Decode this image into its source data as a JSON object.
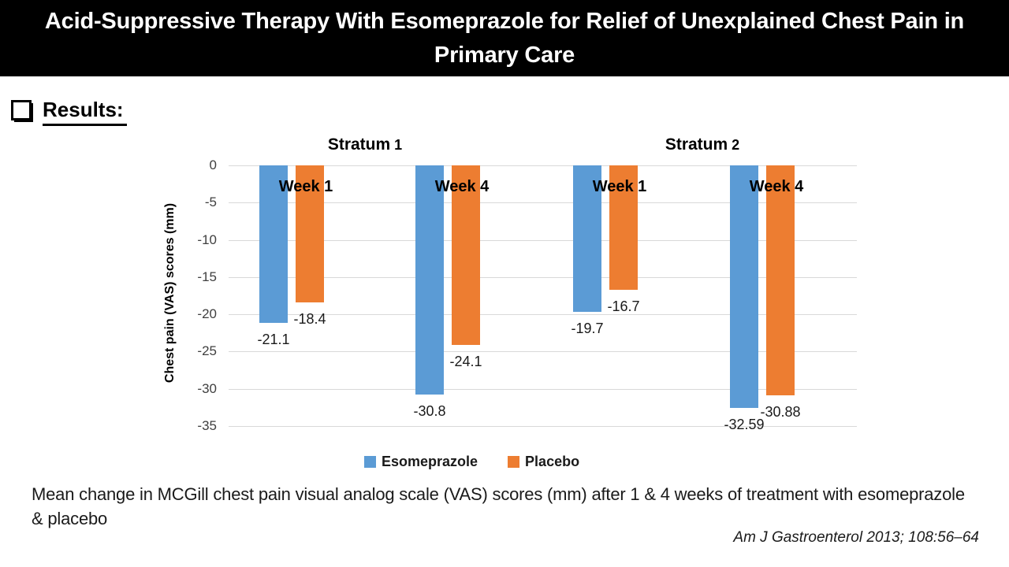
{
  "title_bar": {
    "title": "Acid-Suppressive Therapy With Esomeprazole for Relief of Unexplained Chest Pain in Primary Care"
  },
  "results_heading": {
    "label": "Results:"
  },
  "chart_data": {
    "type": "bar",
    "ylabel": "Chest pain (VAS) scores (mm)",
    "ylim": [
      -35,
      0
    ],
    "yticks": [
      0,
      -5,
      -10,
      -15,
      -20,
      -25,
      -30,
      -35
    ],
    "grid": true,
    "grid_color": "#D9D9D9",
    "legend_position": "bottom",
    "strata": [
      {
        "label": "Stratum",
        "number": "1"
      },
      {
        "label": "Stratum",
        "number": "2"
      }
    ],
    "groups": [
      {
        "stratum": "Stratum 1",
        "category": "Week 1"
      },
      {
        "stratum": "Stratum 1",
        "category": "Week 4"
      },
      {
        "stratum": "Stratum 2",
        "category": "Week 1"
      },
      {
        "stratum": "Stratum 2",
        "category": "Week 4"
      }
    ],
    "series": [
      {
        "name": "Esomeprazole",
        "color": "#5B9BD5",
        "values": [
          -21.1,
          -30.8,
          -19.7,
          -32.59
        ],
        "labels": [
          "-21.1",
          "-30.8",
          "-19.7",
          "-32.59"
        ]
      },
      {
        "name": "Placebo",
        "color": "#ED7D31",
        "values": [
          -18.4,
          -24.1,
          -16.7,
          -30.88
        ],
        "labels": [
          "-18.4",
          "-24.1",
          "-16.7",
          "-30.88"
        ]
      }
    ]
  },
  "caption": "Mean change in MCGill chest pain visual analog scale (VAS) scores (mm) after 1 & 4 weeks of treatment with esomeprazole & placebo",
  "citation": "Am J Gastroenterol 2013; 108:56–64"
}
